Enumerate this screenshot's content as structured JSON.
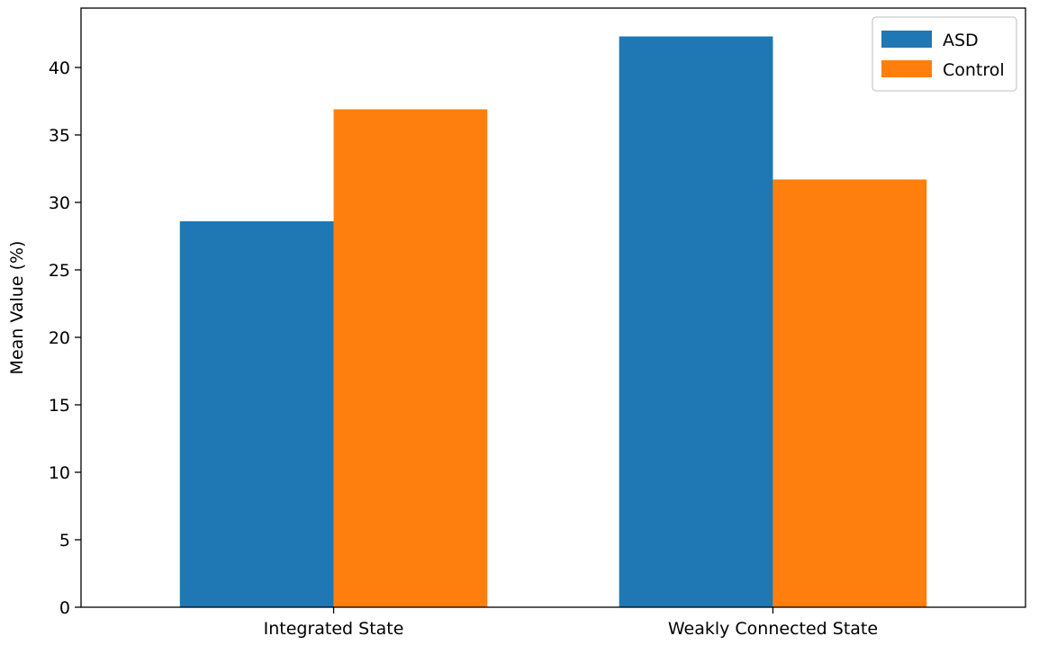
{
  "chart_data": {
    "type": "bar",
    "categories": [
      "Integrated State",
      "Weakly Connected State"
    ],
    "series": [
      {
        "name": "ASD",
        "values": [
          28.6,
          42.3
        ],
        "color": "#1f77b4"
      },
      {
        "name": "Control",
        "values": [
          36.9,
          31.7
        ],
        "color": "#ff7f0e"
      }
    ],
    "title": "",
    "xlabel": "",
    "ylabel": "Mean Value (%)",
    "ylim": [
      0,
      44.4
    ],
    "yticks": [
      0,
      5,
      10,
      15,
      20,
      25,
      30,
      35,
      40
    ],
    "grid": false,
    "legend_position": "top-right"
  }
}
